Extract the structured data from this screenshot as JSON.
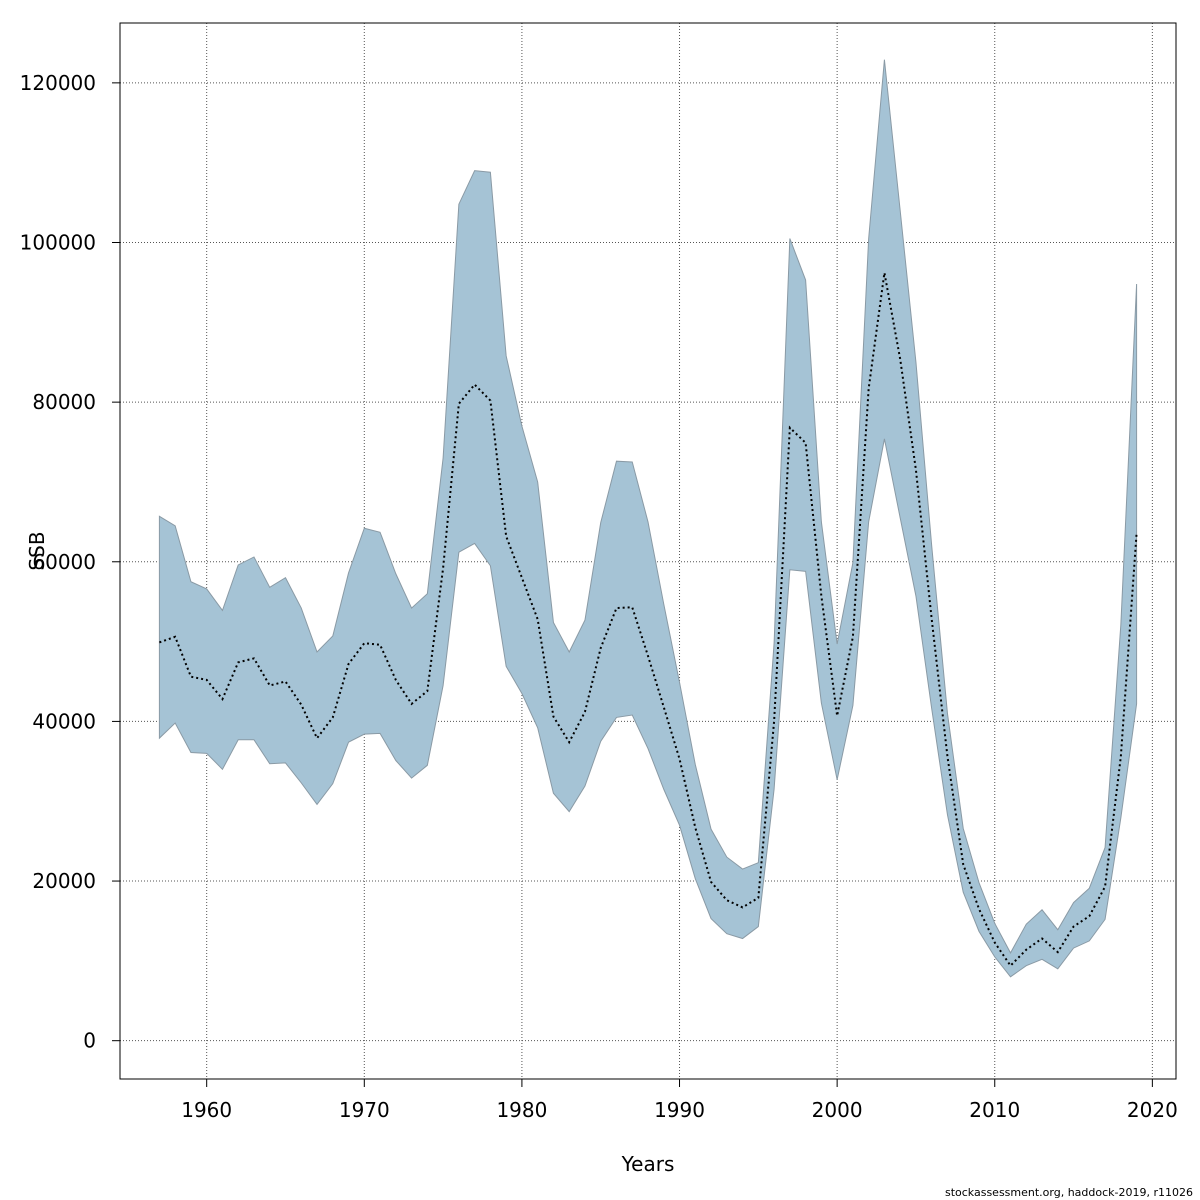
{
  "chart_data": {
    "type": "area",
    "xlabel": "Years",
    "ylabel": "SSB",
    "xlim": [
      1954.5,
      2021.5
    ],
    "ylim": [
      -4800,
      127500
    ],
    "x_ticks": [
      1960,
      1970,
      1980,
      1990,
      2000,
      2010,
      2020
    ],
    "y_ticks": [
      0,
      20000,
      40000,
      60000,
      80000,
      100000,
      120000
    ],
    "grid": true,
    "band_color": "#a5c3d5",
    "band_edge_color": "#8a9aa5",
    "line_color": "#000000",
    "x": [
      1957,
      1958,
      1959,
      1960,
      1961,
      1962,
      1963,
      1964,
      1965,
      1966,
      1967,
      1968,
      1969,
      1970,
      1971,
      1972,
      1973,
      1974,
      1975,
      1976,
      1977,
      1978,
      1979,
      1980,
      1981,
      1982,
      1983,
      1984,
      1985,
      1986,
      1987,
      1988,
      1989,
      1990,
      1991,
      1992,
      1993,
      1994,
      1995,
      1996,
      1997,
      1998,
      1999,
      2000,
      2001,
      2002,
      2003,
      2004,
      2005,
      2006,
      2007,
      2008,
      2009,
      2010,
      2011,
      2012,
      2013,
      2014,
      2015,
      2016,
      2017,
      2018,
      2019
    ],
    "upper": [
      65700,
      64500,
      57500,
      56600,
      53900,
      59600,
      60600,
      56800,
      58000,
      54200,
      48700,
      50700,
      58600,
      64200,
      63700,
      58500,
      54200,
      56000,
      73000,
      104800,
      109000,
      108800,
      85800,
      77000,
      70000,
      52400,
      48700,
      52700,
      64900,
      72600,
      72500,
      65000,
      54700,
      44900,
      34600,
      26500,
      23000,
      21500,
      22300,
      49800,
      100500,
      95300,
      65000,
      49700,
      59900,
      100500,
      122900,
      104000,
      85000,
      62000,
      41000,
      26600,
      19800,
      14700,
      11000,
      14600,
      16400,
      13900,
      17300,
      19100,
      24200,
      52100,
      94800
    ],
    "ssb": [
      49900,
      50600,
      45600,
      45200,
      42800,
      47400,
      47900,
      44500,
      45000,
      42100,
      37900,
      40500,
      47200,
      49800,
      49600,
      45200,
      42200,
      43800,
      59200,
      79800,
      82200,
      80200,
      63200,
      58000,
      52800,
      40600,
      37400,
      41200,
      49200,
      54200,
      54300,
      48200,
      41800,
      35300,
      26700,
      19900,
      17600,
      16700,
      17900,
      40000,
      76800,
      74900,
      55700,
      40700,
      50600,
      81700,
      96200,
      85400,
      71500,
      52800,
      35600,
      22100,
      16500,
      12300,
      9400,
      11400,
      12800,
      11100,
      14300,
      15600,
      19300,
      35600,
      63600
    ],
    "lower": [
      37900,
      39800,
      36100,
      36000,
      34000,
      37700,
      37700,
      34700,
      34800,
      32300,
      29600,
      32200,
      37400,
      38400,
      38500,
      35100,
      32900,
      34500,
      44500,
      61200,
      62300,
      59500,
      46900,
      43500,
      39200,
      31000,
      28700,
      31900,
      37500,
      40500,
      40800,
      36600,
      31500,
      27000,
      20300,
      15300,
      13400,
      12800,
      14300,
      31500,
      59000,
      58800,
      42300,
      32700,
      42000,
      65000,
      75400,
      65500,
      55700,
      41600,
      28300,
      18600,
      13700,
      10500,
      8000,
      9400,
      10200,
      9000,
      11600,
      12500,
      15200,
      27900,
      42200
    ],
    "footer": "stockassessment.org, haddock-2019, r11026"
  }
}
